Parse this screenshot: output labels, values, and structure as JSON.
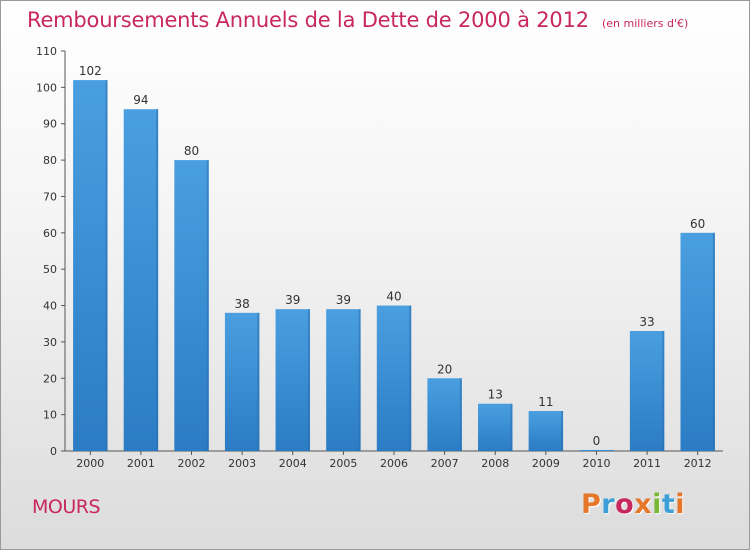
{
  "chart_data": {
    "type": "bar",
    "title": "Remboursements Annuels de la Dette de 2000 à 2012",
    "subtitle": "(en milliers d'€)",
    "categories": [
      "2000",
      "2001",
      "2002",
      "2003",
      "2004",
      "2005",
      "2006",
      "2007",
      "2008",
      "2009",
      "2010",
      "2011",
      "2012"
    ],
    "values": [
      102,
      94,
      80,
      38,
      39,
      39,
      40,
      20,
      13,
      11,
      0,
      33,
      60
    ],
    "ylim": [
      0,
      110
    ],
    "yticks": [
      0,
      10,
      20,
      30,
      40,
      50,
      60,
      70,
      80,
      90,
      100,
      110
    ],
    "xlabel": "",
    "ylabel": "",
    "grid": false,
    "legend": "none",
    "data_labels": true,
    "bar_color": "#4a9fe0",
    "bar_color_dark": "#2b7cc4"
  },
  "footer": {
    "commune": "MOURS",
    "brand": "Proxiti",
    "brand_colors": [
      "#e5762a",
      "#3c9fd8",
      "#c8285c",
      "#e5762a",
      "#7ab83a",
      "#3c9fd8",
      "#e5762a"
    ]
  },
  "colors": {
    "accent": "#c8285c"
  }
}
